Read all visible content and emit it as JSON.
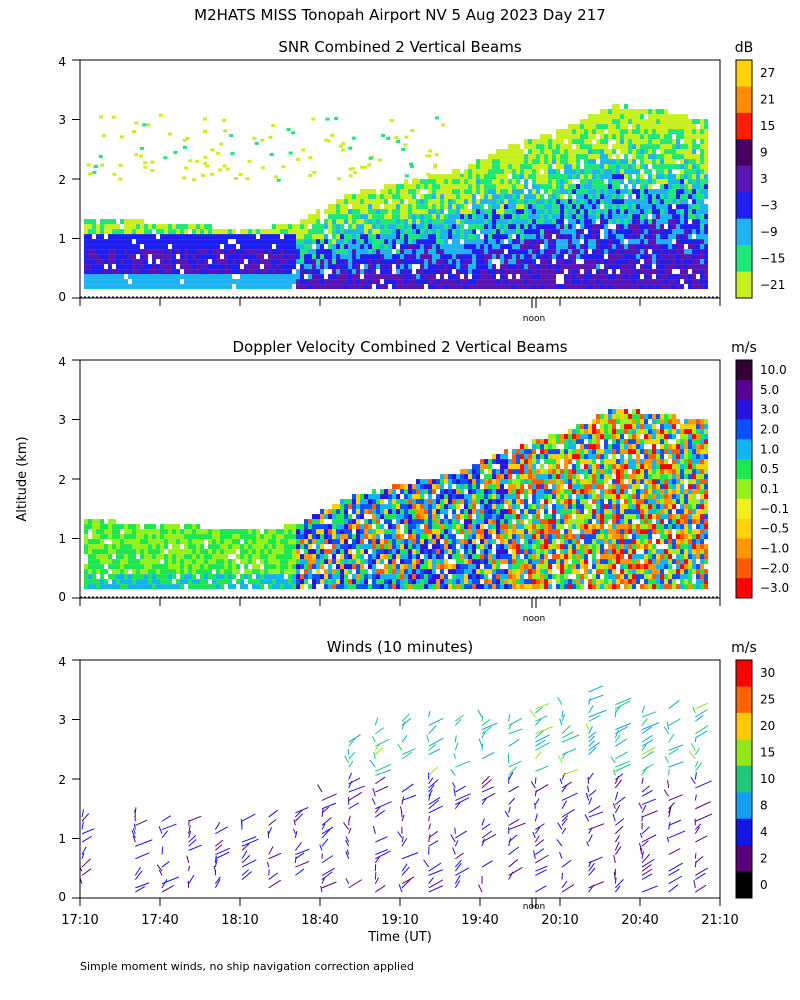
{
  "title": "M2HATS MISS Tonopah Airport NV   5 Aug 2023 Day 217",
  "ylabel": "Altitude (km)",
  "xlabel": "Time (UT)",
  "footnote": "Simple moment winds, no ship navigation correction applied",
  "noon_label": "noon",
  "x_ticks": [
    "17:10",
    "17:40",
    "18:10",
    "18:40",
    "19:10",
    "19:40",
    "20:10",
    "20:40",
    "21:10"
  ],
  "y_ticks": [
    "0",
    "1",
    "2",
    "3",
    "4"
  ],
  "chart_data": [
    {
      "type": "heatmap",
      "title": "SNR Combined 2 Vertical Beams",
      "units": "dB",
      "xlim": [
        "17:10",
        "21:10"
      ],
      "ylim": [
        0,
        4
      ],
      "colorbar_ticks": [
        "27",
        "21",
        "15",
        "9",
        "3",
        "−3",
        "−9",
        "−15",
        "−21"
      ],
      "colorbar_colors": [
        "#ffd200",
        "#ff8c00",
        "#ff1e00",
        "#4a0060",
        "#5a16b4",
        "#1e1ef0",
        "#1eb4f0",
        "#1ee678",
        "#c8f01e"
      ],
      "profile_top_km": [
        [
          "17:10",
          1.3
        ],
        [
          "17:30",
          1.25
        ],
        [
          "17:50",
          1.2
        ],
        [
          "18:10",
          1.1
        ],
        [
          "18:30",
          1.2
        ],
        [
          "18:50",
          1.7
        ],
        [
          "19:10",
          1.9
        ],
        [
          "19:30",
          2.1
        ],
        [
          "19:50",
          2.5
        ],
        [
          "20:10",
          2.8
        ],
        [
          "20:30",
          3.2
        ],
        [
          "20:50",
          3.1
        ],
        [
          "21:00",
          3.0
        ]
      ]
    },
    {
      "type": "heatmap",
      "title": "Doppler Velocity Combined 2 Vertical Beams",
      "units": "m/s",
      "xlim": [
        "17:10",
        "21:10"
      ],
      "ylim": [
        0,
        4
      ],
      "colorbar_ticks": [
        "10.0",
        "5.0",
        "3.0",
        "2.0",
        "1.0",
        "0.5",
        "0.1",
        "−0.1",
        "−0.5",
        "−1.0",
        "−2.0",
        "−3.0"
      ],
      "colorbar_colors": [
        "#320032",
        "#5a0096",
        "#2814dc",
        "#0a50ff",
        "#14b4f0",
        "#1ee650",
        "#96f01e",
        "#f0f01e",
        "#ffd200",
        "#ff9600",
        "#ff5a00",
        "#ff0000"
      ]
    },
    {
      "type": "scatter",
      "title": "Winds (10 minutes)",
      "units": "m/s",
      "xlim": [
        "17:10",
        "21:10"
      ],
      "ylim": [
        0,
        4
      ],
      "colorbar_ticks": [
        "30",
        "25",
        "20",
        "15",
        "10",
        "8",
        "4",
        "2",
        "0"
      ],
      "colorbar_colors": [
        "#ff0000",
        "#ff6400",
        "#ffc800",
        "#96e61e",
        "#1ec878",
        "#14a0f0",
        "#1414e6",
        "#5a0078",
        "#000000"
      ],
      "profile_times": [
        "17:10",
        "17:30",
        "17:40",
        "17:50",
        "18:00",
        "18:10",
        "18:20",
        "18:30",
        "18:40",
        "18:50",
        "19:00",
        "19:10",
        "19:20",
        "19:30",
        "19:40",
        "19:50",
        "20:00",
        "20:10",
        "20:20",
        "20:30",
        "20:40",
        "20:50",
        "21:00"
      ],
      "profile_top_km": [
        1.4,
        1.45,
        1.4,
        1.3,
        1.2,
        1.3,
        1.4,
        1.5,
        1.9,
        2.8,
        2.9,
        3.0,
        3.1,
        3.0,
        3.1,
        3.0,
        3.2,
        3.3,
        3.5,
        3.3,
        3.3,
        3.2,
        3.2
      ]
    }
  ]
}
